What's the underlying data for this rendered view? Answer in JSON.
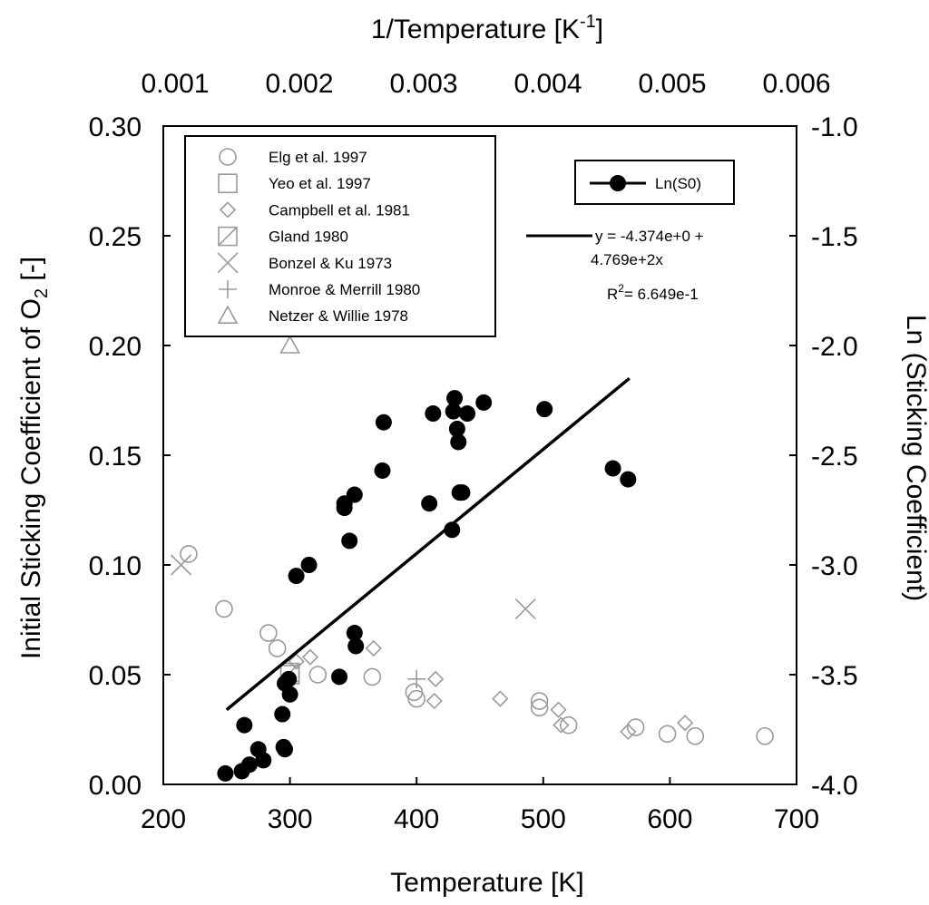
{
  "chart_data": {
    "type": "scatter",
    "title": "",
    "xlabel": "Temperature [K]",
    "ylabel": "Initial Sticking Coefficient of O",
    "ylabel_sub": "2",
    "ylabel_suffix": " [-]",
    "y2label": "Ln (Sticking Coefficient)",
    "x2label": "1/Temperature [K",
    "x2label_sup": "-1",
    "x2label_suffix": "]",
    "xlim": [
      200,
      700
    ],
    "ylim": [
      0.0,
      0.3
    ],
    "y2lim": [
      -4.0,
      -1.0
    ],
    "x2lim": [
      0.001,
      0.006
    ],
    "x_ticks": [
      "200",
      "300",
      "400",
      "500",
      "600",
      "700"
    ],
    "y_ticks": [
      "0.00",
      "0.05",
      "0.10",
      "0.15",
      "0.20",
      "0.25",
      "0.30"
    ],
    "y2_ticks": [
      "-4.0",
      "-3.5",
      "-3.0",
      "-2.5",
      "-2.0",
      "-1.5",
      "-1.0"
    ],
    "x2_ticks": [
      "0.001",
      "0.002",
      "0.003",
      "0.004",
      "0.005",
      "0.006"
    ],
    "series": [
      {
        "name": "Elg et al. 1997",
        "marker": "circle",
        "points": [
          [
            220,
            0.105
          ],
          [
            248,
            0.08
          ],
          [
            283,
            0.069
          ],
          [
            290,
            0.062
          ],
          [
            322,
            0.05
          ],
          [
            365,
            0.049
          ],
          [
            398,
            0.042
          ],
          [
            400,
            0.039
          ],
          [
            497,
            0.038
          ],
          [
            497,
            0.035
          ],
          [
            520,
            0.027
          ],
          [
            573,
            0.026
          ],
          [
            598,
            0.023
          ],
          [
            620,
            0.022
          ],
          [
            675,
            0.022
          ]
        ]
      },
      {
        "name": "Yeo et al. 1997",
        "marker": "square",
        "points": [
          [
            300,
            0.05
          ]
        ]
      },
      {
        "name": "Campbell et al. 1981",
        "marker": "diamond",
        "points": [
          [
            305,
            0.056
          ],
          [
            316,
            0.058
          ],
          [
            366,
            0.062
          ],
          [
            415,
            0.048
          ],
          [
            414,
            0.038
          ],
          [
            466,
            0.039
          ],
          [
            512,
            0.034
          ],
          [
            514,
            0.027
          ],
          [
            567,
            0.024
          ],
          [
            612,
            0.028
          ]
        ]
      },
      {
        "name": "Gland 1980",
        "marker": "square-slash",
        "points": [
          [
            300,
            0.051
          ]
        ]
      },
      {
        "name": "Bonzel & Ku 1973",
        "marker": "x",
        "points": [
          [
            214,
            0.1
          ],
          [
            486,
            0.08
          ]
        ]
      },
      {
        "name": "Monroe & Merrill 1980",
        "marker": "plus",
        "points": [
          [
            400,
            0.048
          ]
        ]
      },
      {
        "name": "Netzer & Willie 1978",
        "marker": "triangle",
        "points": [
          [
            300,
            0.2
          ]
        ]
      }
    ],
    "ln_series": {
      "name": "Ln(S0)",
      "marker": "filled-circle",
      "points": [
        [
          249,
          -3.95
        ],
        [
          262,
          -3.94
        ],
        [
          264,
          -3.73
        ],
        [
          268,
          -3.91
        ],
        [
          275,
          -3.84
        ],
        [
          279,
          -3.89
        ],
        [
          294,
          -3.68
        ],
        [
          295,
          -3.83
        ],
        [
          296,
          -3.84
        ],
        [
          296,
          -3.54
        ],
        [
          299,
          -3.52
        ],
        [
          300,
          -3.59
        ],
        [
          305,
          -3.05
        ],
        [
          315,
          -3.0
        ],
        [
          339,
          -3.51
        ],
        [
          343,
          -2.72
        ],
        [
          343,
          -2.74
        ],
        [
          347,
          -2.89
        ],
        [
          351,
          -2.68
        ],
        [
          351,
          -3.31
        ],
        [
          352,
          -3.37
        ],
        [
          373,
          -2.57
        ],
        [
          374,
          -2.35
        ],
        [
          410,
          -2.72
        ],
        [
          413,
          -2.31
        ],
        [
          428,
          -2.84
        ],
        [
          429,
          -2.3
        ],
        [
          430,
          -2.24
        ],
        [
          432,
          -2.38
        ],
        [
          433,
          -2.44
        ],
        [
          434,
          -2.67
        ],
        [
          436,
          -2.67
        ],
        [
          440,
          -2.31
        ],
        [
          453,
          -2.26
        ],
        [
          501,
          -2.29
        ],
        [
          555,
          -2.56
        ],
        [
          567,
          -2.61
        ]
      ]
    },
    "fit_line": {
      "x": [
        250,
        568
      ],
      "y": [
        0.034,
        0.185
      ]
    },
    "fit_text": {
      "line1": "y = -4.374e+0 +",
      "line2": "4.769e+2x",
      "r2_prefix": "R",
      "r2_sup": "2",
      "r2_suffix": "= 6.649e-1"
    },
    "legend_ln_label": "Ln(S0)",
    "colors": {
      "open_marker": "#9a9a9a",
      "filled": "#000000",
      "axis": "#000000"
    }
  }
}
